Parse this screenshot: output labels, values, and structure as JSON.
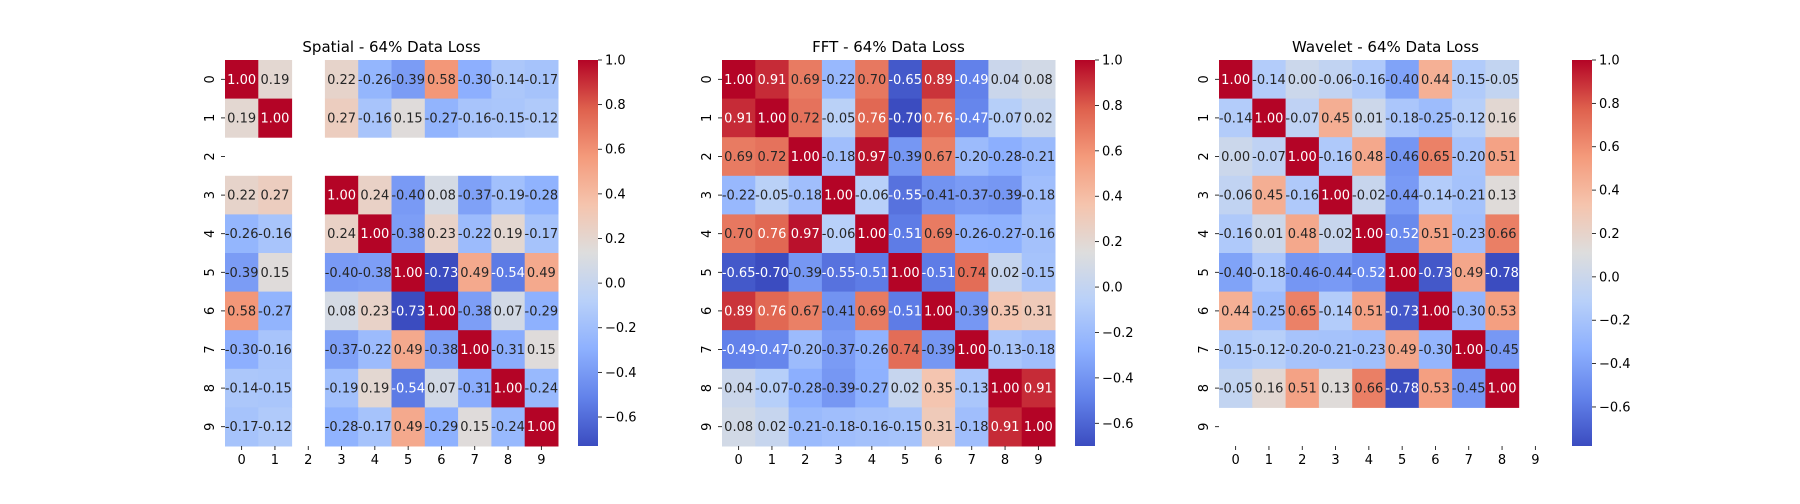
{
  "chart_data": [
    {
      "type": "heatmap",
      "title": "Spatial - 64% Data Loss",
      "x_ticks": [
        "0",
        "1",
        "2",
        "3",
        "4",
        "5",
        "6",
        "7",
        "8",
        "9"
      ],
      "y_ticks": [
        "0",
        "1",
        "2",
        "3",
        "4",
        "5",
        "6",
        "7",
        "8",
        "9"
      ],
      "colormap": "coolwarm",
      "vmin": -0.73,
      "vmax": 1.0,
      "colorbar_ticks": [
        "1.0",
        "0.8",
        "0.6",
        "0.4",
        "0.2",
        "0.0",
        "-0.2",
        "-0.4",
        "-0.6"
      ],
      "annotation_format": "2 decimals",
      "values": [
        [
          1.0,
          0.19,
          null,
          0.22,
          -0.26,
          -0.39,
          0.58,
          -0.3,
          -0.14,
          -0.17
        ],
        [
          0.19,
          1.0,
          null,
          0.27,
          -0.16,
          0.15,
          -0.27,
          -0.16,
          -0.15,
          -0.12
        ],
        [
          null,
          null,
          null,
          null,
          null,
          null,
          null,
          null,
          null,
          null
        ],
        [
          0.22,
          0.27,
          null,
          1.0,
          0.24,
          -0.4,
          0.08,
          -0.37,
          -0.19,
          -0.28
        ],
        [
          -0.26,
          -0.16,
          null,
          0.24,
          1.0,
          -0.38,
          0.23,
          -0.22,
          0.19,
          -0.17
        ],
        [
          -0.39,
          0.15,
          null,
          -0.4,
          -0.38,
          1.0,
          -0.73,
          0.49,
          -0.54,
          0.49
        ],
        [
          0.58,
          -0.27,
          null,
          0.08,
          0.23,
          -0.73,
          1.0,
          -0.38,
          0.07,
          -0.29
        ],
        [
          -0.3,
          -0.16,
          null,
          -0.37,
          -0.22,
          0.49,
          -0.38,
          1.0,
          -0.31,
          0.15
        ],
        [
          -0.14,
          -0.15,
          null,
          -0.19,
          0.19,
          -0.54,
          0.07,
          -0.31,
          1.0,
          -0.24
        ],
        [
          -0.17,
          -0.12,
          null,
          -0.28,
          -0.17,
          0.49,
          -0.29,
          0.15,
          -0.24,
          1.0
        ]
      ]
    },
    {
      "type": "heatmap",
      "title": "FFT - 64% Data Loss",
      "x_ticks": [
        "0",
        "1",
        "2",
        "3",
        "4",
        "5",
        "6",
        "7",
        "8",
        "9"
      ],
      "y_ticks": [
        "0",
        "1",
        "2",
        "3",
        "4",
        "5",
        "6",
        "7",
        "8",
        "9"
      ],
      "colormap": "coolwarm",
      "vmin": -0.7,
      "vmax": 1.0,
      "colorbar_ticks": [
        "1.0",
        "0.8",
        "0.6",
        "0.4",
        "0.2",
        "0.0",
        "-0.2",
        "-0.4",
        "-0.6"
      ],
      "annotation_format": "2 decimals",
      "values": [
        [
          1.0,
          0.91,
          0.69,
          -0.22,
          0.7,
          -0.65,
          0.89,
          -0.49,
          0.04,
          0.08
        ],
        [
          0.91,
          1.0,
          0.72,
          -0.05,
          0.76,
          -0.7,
          0.76,
          -0.47,
          -0.07,
          0.02
        ],
        [
          0.69,
          0.72,
          1.0,
          -0.18,
          0.97,
          -0.39,
          0.67,
          -0.2,
          -0.28,
          -0.21
        ],
        [
          -0.22,
          -0.05,
          -0.18,
          1.0,
          -0.06,
          -0.55,
          -0.41,
          -0.37,
          -0.39,
          -0.18
        ],
        [
          0.7,
          0.76,
          0.97,
          -0.06,
          1.0,
          -0.51,
          0.69,
          -0.26,
          -0.27,
          -0.16
        ],
        [
          -0.65,
          -0.7,
          -0.39,
          -0.55,
          -0.51,
          1.0,
          -0.51,
          0.74,
          0.02,
          -0.15
        ],
        [
          0.89,
          0.76,
          0.67,
          -0.41,
          0.69,
          -0.51,
          1.0,
          -0.39,
          0.35,
          0.31
        ],
        [
          -0.49,
          -0.47,
          -0.2,
          -0.37,
          -0.26,
          0.74,
          -0.39,
          1.0,
          -0.13,
          -0.18
        ],
        [
          0.04,
          -0.07,
          -0.28,
          -0.39,
          -0.27,
          0.02,
          0.35,
          -0.13,
          1.0,
          0.91
        ],
        [
          0.08,
          0.02,
          -0.21,
          -0.18,
          -0.16,
          -0.15,
          0.31,
          -0.18,
          0.91,
          1.0
        ]
      ]
    },
    {
      "type": "heatmap",
      "title": "Wavelet - 64% Data Loss",
      "x_ticks": [
        "0",
        "1",
        "2",
        "3",
        "4",
        "5",
        "6",
        "7",
        "8",
        "9"
      ],
      "y_ticks": [
        "0",
        "1",
        "2",
        "3",
        "4",
        "5",
        "6",
        "7",
        "8",
        "9"
      ],
      "colormap": "coolwarm",
      "vmin": -0.78,
      "vmax": 1.0,
      "colorbar_ticks": [
        "1.0",
        "0.8",
        "0.6",
        "0.4",
        "0.2",
        "0.0",
        "-0.2",
        "-0.4",
        "-0.6"
      ],
      "annotation_format": "2 decimals",
      "values": [
        [
          1.0,
          -0.14,
          0.0,
          -0.06,
          -0.16,
          -0.4,
          0.44,
          -0.15,
          -0.05,
          null
        ],
        [
          -0.14,
          1.0,
          -0.07,
          0.45,
          0.01,
          -0.18,
          -0.25,
          -0.12,
          0.16,
          null
        ],
        [
          0.0,
          -0.07,
          1.0,
          -0.16,
          0.48,
          -0.46,
          0.65,
          -0.2,
          0.51,
          null
        ],
        [
          -0.06,
          0.45,
          -0.16,
          1.0,
          -0.02,
          -0.44,
          -0.14,
          -0.21,
          0.13,
          null
        ],
        [
          -0.16,
          0.01,
          0.48,
          -0.02,
          1.0,
          -0.52,
          0.51,
          -0.23,
          0.66,
          null
        ],
        [
          -0.4,
          -0.18,
          -0.46,
          -0.44,
          -0.52,
          1.0,
          -0.73,
          0.49,
          -0.78,
          null
        ],
        [
          0.44,
          -0.25,
          0.65,
          -0.14,
          0.51,
          -0.73,
          1.0,
          -0.3,
          0.53,
          null
        ],
        [
          -0.15,
          -0.12,
          -0.2,
          -0.21,
          -0.23,
          0.49,
          -0.3,
          1.0,
          -0.45,
          null
        ],
        [
          -0.05,
          0.16,
          0.51,
          0.13,
          0.66,
          -0.78,
          0.53,
          -0.45,
          1.0,
          null
        ],
        [
          null,
          null,
          null,
          null,
          null,
          null,
          null,
          null,
          null,
          null
        ]
      ]
    }
  ]
}
